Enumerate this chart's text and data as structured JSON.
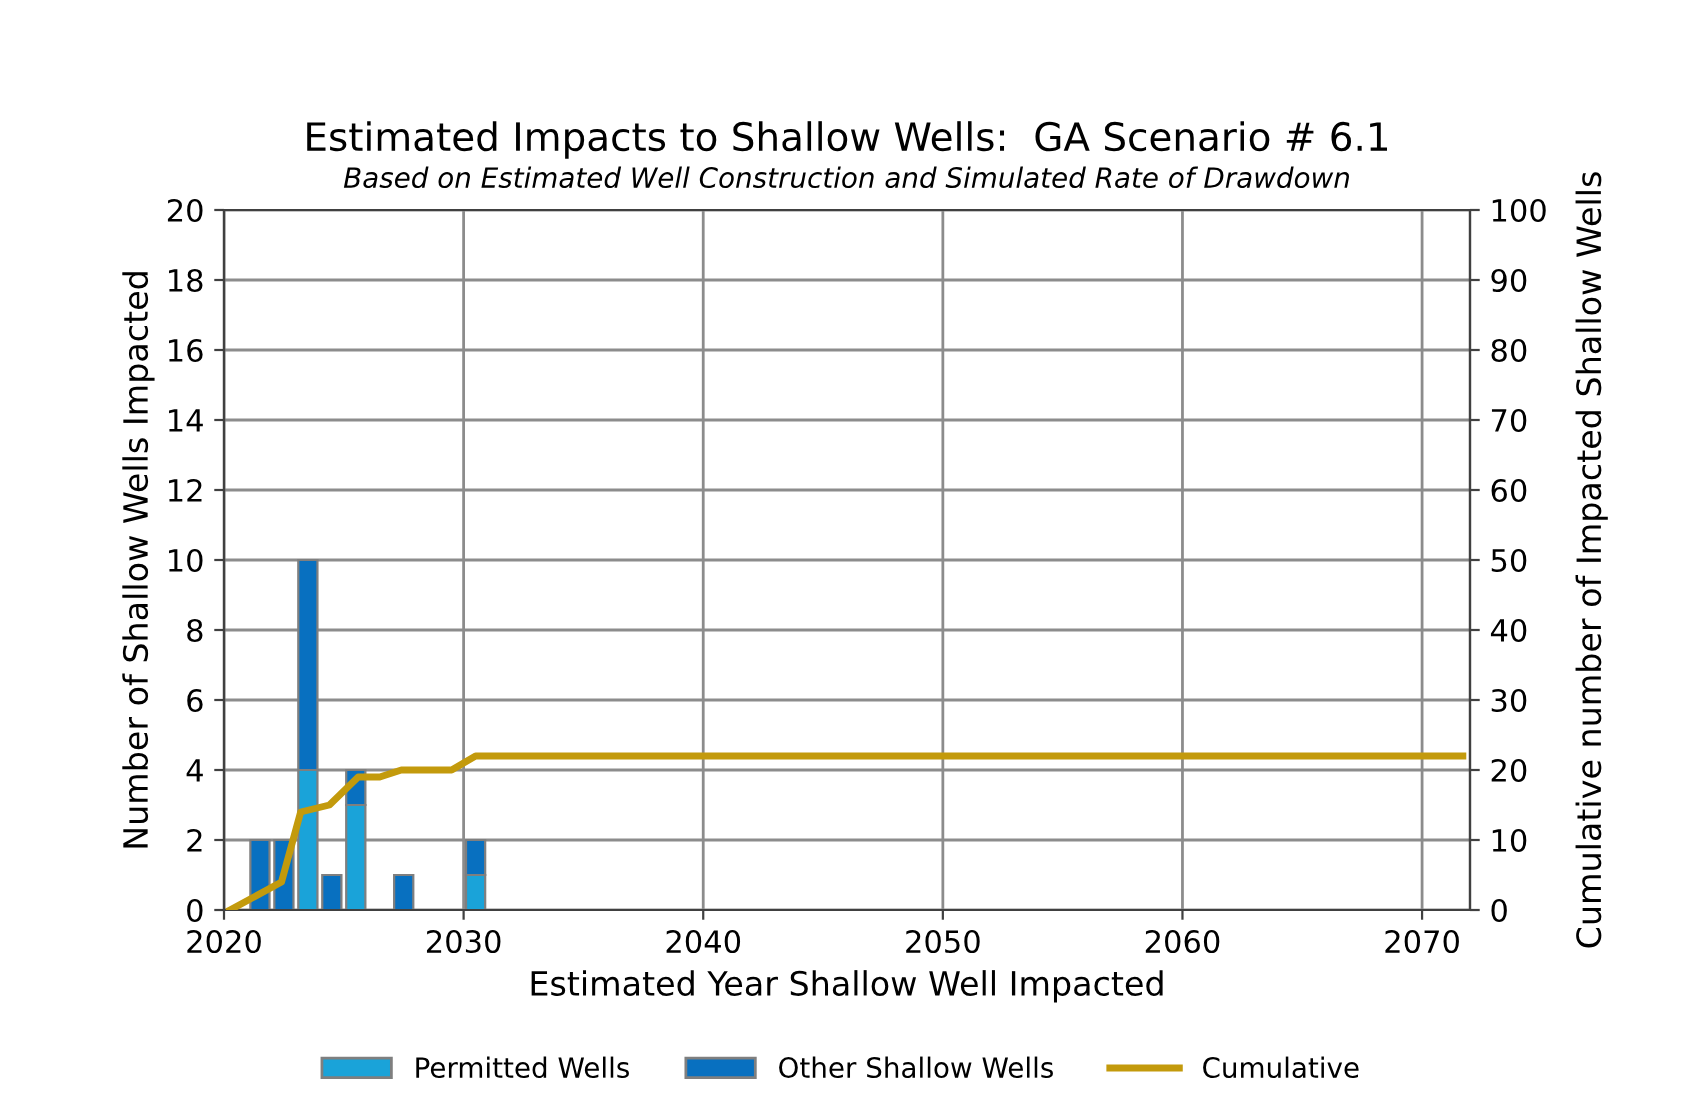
{
  "chart_data": {
    "type": "bar",
    "stacked": true,
    "title": "Estimated Impacts to Shallow Wells:  GA Scenario # 6.1",
    "subtitle": "Based on Estimated Well Construction and Simulated Rate of Drawdown",
    "xlabel": "Estimated Year Shallow Well Impacted",
    "ylabel": "Number of Shallow Wells Impacted",
    "y2label": "Cumulative number of Impacted Shallow Wells",
    "x": [
      2021.5,
      2022.5,
      2023.5,
      2024.5,
      2025.5,
      2027.5,
      2030.5
    ],
    "series": [
      {
        "name": "Permitted Wells",
        "color": "#1aa3d9",
        "values": [
          0,
          0,
          4,
          0,
          3,
          0,
          1
        ]
      },
      {
        "name": "Other Shallow Wells",
        "color": "#0870c0",
        "values": [
          2,
          2,
          6,
          1,
          1,
          1,
          1
        ]
      },
      {
        "name": "Cumulative",
        "type": "line",
        "axis": "y2",
        "color": "#c39a0c",
        "x": [
          2020.25,
          2022.4,
          2023.2,
          2024.4,
          2025.6,
          2026.5,
          2027.4,
          2029.5,
          2030.5,
          2071.7
        ],
        "values": [
          0,
          4,
          14,
          15,
          19,
          19,
          20,
          20,
          22,
          22
        ]
      }
    ],
    "xlim": [
      2020,
      2072
    ],
    "xticks": [
      2020,
      2030,
      2040,
      2050,
      2060,
      2070
    ],
    "ylim": [
      0,
      20
    ],
    "yticks": [
      0,
      2,
      4,
      6,
      8,
      10,
      12,
      14,
      16,
      18,
      20
    ],
    "y2lim": [
      0,
      100
    ],
    "y2ticks": [
      0,
      10,
      20,
      30,
      40,
      50,
      60,
      70,
      80,
      90,
      100
    ],
    "grid": true,
    "legend": "bottom"
  }
}
